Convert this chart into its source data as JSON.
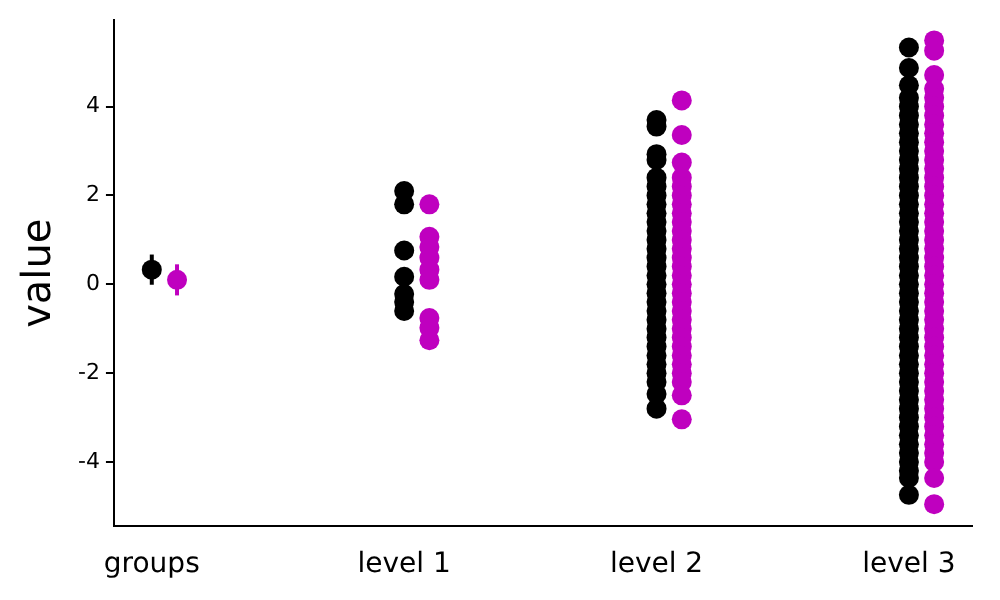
{
  "chart_data": {
    "type": "scatter",
    "ylabel": "value",
    "categories": [
      "groups",
      "level 1",
      "level 2",
      "level 3"
    ],
    "ylim": [
      -5.45,
      5.95
    ],
    "yticks": [
      -4,
      -2,
      0,
      2,
      4
    ],
    "grid": false,
    "legend": false,
    "marker": "circle",
    "series": [
      {
        "color": "#000000",
        "x": [
          "groups"
        ],
        "values": [
          0.33
        ],
        "errors": [
          0.34
        ]
      },
      {
        "color": "#bf00bf",
        "x": [
          "groups"
        ],
        "values": [
          0.1
        ],
        "errors": [
          0.35
        ]
      },
      {
        "color": "#000000",
        "x": [
          "level 1",
          "level 1",
          "level 1",
          "level 1",
          "level 1",
          "level 1",
          "level 1",
          "level 2",
          "level 2",
          "level 2",
          "level 2",
          "level 2",
          "level 2",
          "level 2",
          "level 2",
          "level 2",
          "level 2",
          "level 2",
          "level 2",
          "level 2",
          "level 2",
          "level 2",
          "level 2",
          "level 2",
          "level 2",
          "level 2",
          "level 2",
          "level 2",
          "level 2",
          "level 2",
          "level 2",
          "level 2",
          "level 2",
          "level 2",
          "level 2",
          "level 2",
          "level 2",
          "level 3",
          "level 3",
          "level 3",
          "level 3",
          "level 3",
          "level 3",
          "level 3",
          "level 3",
          "level 3",
          "level 3",
          "level 3",
          "level 3",
          "level 3",
          "level 3",
          "level 3",
          "level 3",
          "level 3",
          "level 3",
          "level 3",
          "level 3",
          "level 3",
          "level 3",
          "level 3",
          "level 3",
          "level 3",
          "level 3",
          "level 3",
          "level 3",
          "level 3",
          "level 3",
          "level 3",
          "level 3",
          "level 3",
          "level 3",
          "level 3",
          "level 3",
          "level 3",
          "level 3",
          "level 3",
          "level 3",
          "level 3",
          "level 3",
          "level 3",
          "level 3",
          "level 3",
          "level 3",
          "level 3",
          "level 3"
        ],
        "values": [
          2.1,
          1.8,
          0.76,
          0.17,
          -0.22,
          -0.4,
          -0.6,
          3.7,
          3.55,
          2.93,
          2.8,
          2.4,
          2.2,
          2.0,
          1.8,
          1.6,
          1.4,
          1.2,
          1.0,
          0.8,
          0.6,
          0.4,
          0.2,
          0.0,
          -0.2,
          -0.4,
          -0.6,
          -0.8,
          -1.0,
          -1.2,
          -1.4,
          -1.6,
          -1.8,
          -2.0,
          -2.2,
          -2.47,
          -2.8,
          5.33,
          4.87,
          4.48,
          4.2,
          4.0,
          3.8,
          3.6,
          3.4,
          3.2,
          3.0,
          2.8,
          2.6,
          2.4,
          2.2,
          2.0,
          1.8,
          1.6,
          1.4,
          1.2,
          1.0,
          0.8,
          0.6,
          0.4,
          0.2,
          0.0,
          -0.2,
          -0.4,
          -0.6,
          -0.8,
          -1.0,
          -1.2,
          -1.4,
          -1.6,
          -1.8,
          -2.0,
          -2.2,
          -2.4,
          -2.6,
          -2.8,
          -3.0,
          -3.2,
          -3.4,
          -3.6,
          -3.8,
          -4.0,
          -4.2,
          -4.36,
          -4.74
        ]
      },
      {
        "color": "#bf00bf",
        "x": [
          "level 1",
          "level 1",
          "level 1",
          "level 1",
          "level 1",
          "level 1",
          "level 1",
          "level 1",
          "level 1",
          "level 2",
          "level 2",
          "level 2",
          "level 2",
          "level 2",
          "level 2",
          "level 2",
          "level 2",
          "level 2",
          "level 2",
          "level 2",
          "level 2",
          "level 2",
          "level 2",
          "level 2",
          "level 2",
          "level 2",
          "level 2",
          "level 2",
          "level 2",
          "level 2",
          "level 2",
          "level 2",
          "level 2",
          "level 2",
          "level 2",
          "level 2",
          "level 2",
          "level 2",
          "level 3",
          "level 3",
          "level 3",
          "level 3",
          "level 3",
          "level 3",
          "level 3",
          "level 3",
          "level 3",
          "level 3",
          "level 3",
          "level 3",
          "level 3",
          "level 3",
          "level 3",
          "level 3",
          "level 3",
          "level 3",
          "level 3",
          "level 3",
          "level 3",
          "level 3",
          "level 3",
          "level 3",
          "level 3",
          "level 3",
          "level 3",
          "level 3",
          "level 3",
          "level 3",
          "level 3",
          "level 3",
          "level 3",
          "level 3",
          "level 3",
          "level 3",
          "level 3",
          "level 3",
          "level 3",
          "level 3",
          "level 3",
          "level 3",
          "level 3",
          "level 3",
          "level 3",
          "level 3",
          "level 3",
          "level 3"
        ],
        "values": [
          1.8,
          1.07,
          0.84,
          0.6,
          0.33,
          0.1,
          -0.76,
          -0.98,
          -1.26,
          4.14,
          3.36,
          2.74,
          2.4,
          2.2,
          2.0,
          1.8,
          1.6,
          1.4,
          1.2,
          1.0,
          0.8,
          0.6,
          0.4,
          0.2,
          0.0,
          -0.2,
          -0.4,
          -0.6,
          -0.8,
          -1.0,
          -1.2,
          -1.4,
          -1.6,
          -1.8,
          -2.0,
          -2.2,
          -2.5,
          -3.04,
          5.49,
          5.26,
          4.71,
          4.4,
          4.2,
          4.0,
          3.8,
          3.6,
          3.4,
          3.2,
          3.0,
          2.8,
          2.6,
          2.4,
          2.2,
          2.0,
          1.8,
          1.6,
          1.4,
          1.2,
          1.0,
          0.8,
          0.6,
          0.4,
          0.2,
          0.0,
          -0.2,
          -0.4,
          -0.6,
          -0.8,
          -1.0,
          -1.2,
          -1.4,
          -1.6,
          -1.8,
          -2.0,
          -2.2,
          -2.4,
          -2.6,
          -2.8,
          -3.0,
          -3.2,
          -3.4,
          -3.6,
          -3.8,
          -4.0,
          -4.36,
          -4.95
        ]
      }
    ]
  }
}
